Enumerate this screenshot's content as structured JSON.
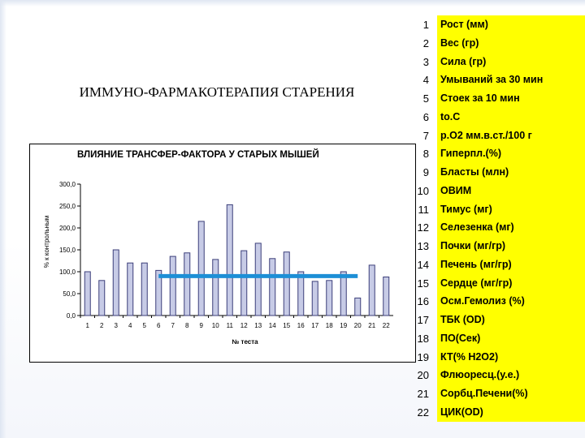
{
  "slide_title": "ИММУНО-ФАРМАКОТЕРАПИЯ СТАРЕНИЯ",
  "legend": [
    {
      "num": "1",
      "label": "Рост (мм)"
    },
    {
      "num": "2",
      "label": "Вес (гр)"
    },
    {
      "num": "3",
      "label": "Сила (гр)"
    },
    {
      "num": "4",
      "label": "Умываний за 30 мин"
    },
    {
      "num": "5",
      "label": "Стоек за 10 мин"
    },
    {
      "num": "6",
      "label": "to.C"
    },
    {
      "num": "7",
      "label": "р.О2 мм.в.ст./100 г"
    },
    {
      "num": "8",
      "label": "Гиперпл.(%)"
    },
    {
      "num": "9",
      "label": "Бласты (млн)"
    },
    {
      "num": "10",
      "label": "ОВИМ"
    },
    {
      "num": "11",
      "label": "Тимус (мг)"
    },
    {
      "num": "12",
      "label": "Селезенка (мг)"
    },
    {
      "num": "13",
      "label": "Почки (мг/гр)"
    },
    {
      "num": "14",
      "label": "Печень (мг/гр)"
    },
    {
      "num": "15",
      "label": "Сердце (мг/гр)"
    },
    {
      "num": "16",
      "label": "Осм.Гемолиз (%)"
    },
    {
      "num": "17",
      "label": "ТБК (OD)"
    },
    {
      "num": "18",
      "label": "ПО(Сек)"
    },
    {
      "num": "19",
      "label": "КТ(% Н2О2)"
    },
    {
      "num": "20",
      "label": "Флюоресц.(у.е.)"
    },
    {
      "num": "21",
      "label": "Сорбц.Печени(%)"
    },
    {
      "num": "22",
      "label": "ЦИК(OD)"
    }
  ],
  "colors": {
    "bar": "#c7cbe6",
    "bar_stroke": "#3c3f7a",
    "reference_line": "#1d8fd6",
    "legend_bg": "#ffff00"
  },
  "chart_data": {
    "type": "bar",
    "title": "ВЛИЯНИЕ ТРАНСФЕР-ФАКТОРА У СТАРЫХ МЫШЕЙ",
    "xlabel": "№ теста",
    "ylabel": "% к контрольным",
    "categories": [
      "1",
      "2",
      "3",
      "4",
      "5",
      "6",
      "7",
      "8",
      "9",
      "10",
      "11",
      "12",
      "13",
      "14",
      "15",
      "16",
      "17",
      "18",
      "19",
      "20",
      "21",
      "22"
    ],
    "values": [
      100,
      80,
      150,
      120,
      120,
      103,
      135,
      143,
      215,
      128,
      253,
      148,
      165,
      130,
      145,
      100,
      78,
      80,
      100,
      40,
      115,
      88
    ],
    "y_ticks": [
      "0,0",
      "50,0",
      "100,0",
      "150,0",
      "200,0",
      "250,0",
      "300,0"
    ],
    "ylim": [
      0,
      300
    ],
    "reference_line": {
      "value": 90,
      "from": "6",
      "to": "20"
    },
    "grid": false,
    "legend": "none"
  }
}
